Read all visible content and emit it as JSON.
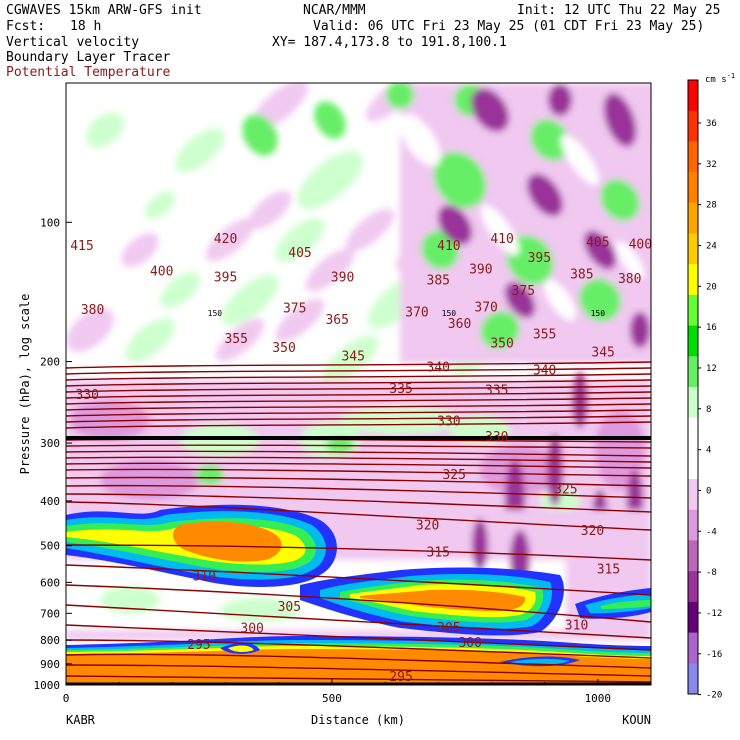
{
  "header": {
    "model": "CGWAVES 15km ARW-GFS init",
    "org": "NCAR/MMM",
    "init": "Init: 12 UTC Thu 22 May 25",
    "fcst_label": "Fcst:",
    "fcst_value": "18 h",
    "valid": "Valid: 06 UTC Fri 23 May 25 (01 CDT Fri 23 May 25)",
    "field1": "Vertical velocity",
    "field2": "Boundary Layer Tracer",
    "field3": "Potential Temperature",
    "xy": "XY= 187.4,173.8 to 191.8,100.1"
  },
  "chart_data": {
    "type": "heatmap",
    "xlabel": "Distance (km)",
    "ylabel": "Pressure (hPa), log scale",
    "x_range": [
      0,
      1100
    ],
    "y_range_hpa": [
      1000,
      50
    ],
    "x_ticks": [
      0,
      500,
      1000
    ],
    "y_ticks": [
      100,
      200,
      300,
      400,
      500,
      600,
      700,
      800,
      900,
      1000
    ],
    "left_station": "KABR",
    "right_station": "KOUN",
    "colorbar": {
      "unit": "cm s",
      "unit_exp": "-1",
      "labels": [
        36,
        32,
        28,
        24,
        20,
        16,
        12,
        8,
        4,
        0,
        -4,
        -8,
        -12,
        -16,
        -20
      ],
      "colors": [
        "#ff0000",
        "#ff3300",
        "#ff6600",
        "#ff8000",
        "#ffa500",
        "#ffcc00",
        "#ffff00",
        "#66ff33",
        "#00dd00",
        "#66ee66",
        "#ccffcc",
        "#ffffff",
        "#ffffff",
        "#f0c8f0",
        "#dd99dd",
        "#bb66bb",
        "#993399",
        "#660077",
        "#aa66cc",
        "#8888ee"
      ]
    },
    "theta_labels": [
      {
        "v": "415",
        "x": 30,
        "p": 112
      },
      {
        "v": "420",
        "x": 300,
        "p": 108
      },
      {
        "v": "405",
        "x": 440,
        "p": 116
      },
      {
        "v": "410",
        "x": 720,
        "p": 112
      },
      {
        "v": "410",
        "x": 820,
        "p": 108
      },
      {
        "v": "405",
        "x": 1000,
        "p": 110
      },
      {
        "v": "400",
        "x": 1080,
        "p": 111
      },
      {
        "v": "400",
        "x": 180,
        "p": 127
      },
      {
        "v": "395",
        "x": 300,
        "p": 131
      },
      {
        "v": "390",
        "x": 520,
        "p": 131
      },
      {
        "v": "385",
        "x": 700,
        "p": 133
      },
      {
        "v": "390",
        "x": 780,
        "p": 126
      },
      {
        "v": "395",
        "x": 890,
        "p": 119
      },
      {
        "v": "385",
        "x": 970,
        "p": 129
      },
      {
        "v": "380",
        "x": 1060,
        "p": 132
      },
      {
        "v": "375",
        "x": 860,
        "p": 140
      },
      {
        "v": "370",
        "x": 790,
        "p": 152
      },
      {
        "v": "380",
        "x": 50,
        "p": 154
      },
      {
        "v": "375",
        "x": 430,
        "p": 153
      },
      {
        "v": "370",
        "x": 660,
        "p": 156
      },
      {
        "v": "365",
        "x": 510,
        "p": 162
      },
      {
        "v": "360",
        "x": 740,
        "p": 165
      },
      {
        "v": "355",
        "x": 320,
        "p": 178
      },
      {
        "v": "350",
        "x": 410,
        "p": 186
      },
      {
        "v": "350",
        "x": 820,
        "p": 182
      },
      {
        "v": "355",
        "x": 900,
        "p": 174
      },
      {
        "v": "345",
        "x": 540,
        "p": 194
      },
      {
        "v": "345",
        "x": 1010,
        "p": 190
      },
      {
        "v": "340",
        "x": 700,
        "p": 205
      },
      {
        "v": "340",
        "x": 900,
        "p": 208
      },
      {
        "v": "335",
        "x": 630,
        "p": 228
      },
      {
        "v": "335",
        "x": 810,
        "p": 230
      },
      {
        "v": "330",
        "x": 40,
        "p": 235
      },
      {
        "v": "330",
        "x": 720,
        "p": 268
      },
      {
        "v": "330",
        "x": 810,
        "p": 290
      },
      {
        "v": "325",
        "x": 730,
        "p": 350
      },
      {
        "v": "325",
        "x": 940,
        "p": 376
      },
      {
        "v": "320",
        "x": 680,
        "p": 450
      },
      {
        "v": "320",
        "x": 990,
        "p": 462
      },
      {
        "v": "315",
        "x": 700,
        "p": 515
      },
      {
        "v": "315",
        "x": 1020,
        "p": 560
      },
      {
        "v": "310",
        "x": 260,
        "p": 580
      },
      {
        "v": "305",
        "x": 420,
        "p": 675
      },
      {
        "v": "305",
        "x": 720,
        "p": 750
      },
      {
        "v": "310",
        "x": 960,
        "p": 740
      },
      {
        "v": "300",
        "x": 350,
        "p": 752
      },
      {
        "v": "300",
        "x": 760,
        "p": 808
      },
      {
        "v": "295",
        "x": 250,
        "p": 815
      },
      {
        "v": "295",
        "x": 630,
        "p": 957
      }
    ],
    "marker_label": "150"
  }
}
